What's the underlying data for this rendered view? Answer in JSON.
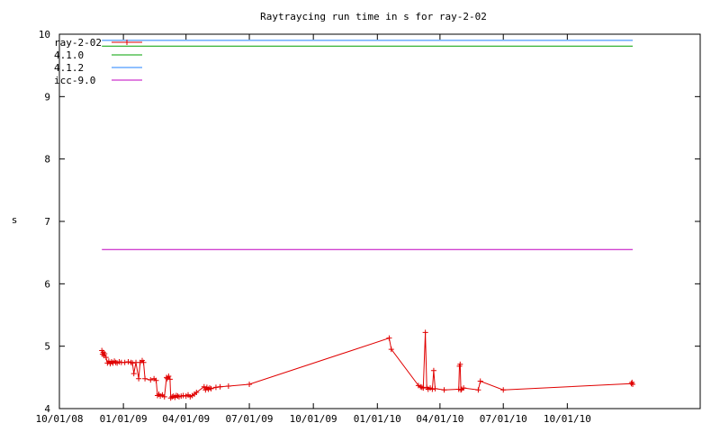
{
  "chart_data": {
    "type": "line",
    "title": "Raytraycing run time in s for ray-2-02",
    "xlabel": "",
    "ylabel": "s",
    "xlim": [
      "2008-10-01",
      "2011-04-10"
    ],
    "ylim": [
      4,
      10
    ],
    "x_ticks": [
      {
        "date": "2008-10-01",
        "label": "10/01/08"
      },
      {
        "date": "2009-01-01",
        "label": "01/01/09"
      },
      {
        "date": "2009-04-01",
        "label": "04/01/09"
      },
      {
        "date": "2009-07-01",
        "label": "07/01/09"
      },
      {
        "date": "2009-10-01",
        "label": "10/01/09"
      },
      {
        "date": "2010-01-01",
        "label": "01/01/10"
      },
      {
        "date": "2010-04-01",
        "label": "04/01/10"
      },
      {
        "date": "2010-07-01",
        "label": "07/01/10"
      },
      {
        "date": "2010-10-01",
        "label": "10/01/10"
      }
    ],
    "y_ticks": [
      4,
      5,
      6,
      7,
      8,
      9,
      10
    ],
    "grid": false,
    "legend": "top-left",
    "series": [
      {
        "name": "ray-2-02",
        "color": "#e00000",
        "marker": "plus",
        "points": [
          [
            "2008-12-01",
            4.93
          ],
          [
            "2008-12-02",
            4.87
          ],
          [
            "2008-12-03",
            4.9
          ],
          [
            "2008-12-04",
            4.85
          ],
          [
            "2008-12-05",
            4.88
          ],
          [
            "2008-12-07",
            4.82
          ],
          [
            "2008-12-09",
            4.73
          ],
          [
            "2008-12-11",
            4.76
          ],
          [
            "2008-12-13",
            4.72
          ],
          [
            "2008-12-15",
            4.75
          ],
          [
            "2008-12-17",
            4.73
          ],
          [
            "2008-12-19",
            4.76
          ],
          [
            "2008-12-21",
            4.74
          ],
          [
            "2008-12-23",
            4.73
          ],
          [
            "2008-12-26",
            4.75
          ],
          [
            "2008-12-29",
            4.74
          ],
          [
            "2009-01-03",
            4.74
          ],
          [
            "2009-01-08",
            4.75
          ],
          [
            "2009-01-12",
            4.74
          ],
          [
            "2009-01-14",
            4.73
          ],
          [
            "2009-01-16",
            4.56
          ],
          [
            "2009-01-19",
            4.74
          ],
          [
            "2009-01-23",
            4.48
          ],
          [
            "2009-01-25",
            4.74
          ],
          [
            "2009-01-28",
            4.77
          ],
          [
            "2009-01-30",
            4.74
          ],
          [
            "2009-02-01",
            4.48
          ],
          [
            "2009-02-09",
            4.46
          ],
          [
            "2009-02-14",
            4.48
          ],
          [
            "2009-02-17",
            4.45
          ],
          [
            "2009-02-19",
            4.21
          ],
          [
            "2009-02-21",
            4.23
          ],
          [
            "2009-02-23",
            4.2
          ],
          [
            "2009-02-26",
            4.22
          ],
          [
            "2009-03-01",
            4.19
          ],
          [
            "2009-03-04",
            4.5
          ],
          [
            "2009-03-05",
            4.48
          ],
          [
            "2009-03-07",
            4.52
          ],
          [
            "2009-03-09",
            4.47
          ],
          [
            "2009-03-10",
            4.17
          ],
          [
            "2009-03-12",
            4.19
          ],
          [
            "2009-03-14",
            4.2
          ],
          [
            "2009-03-16",
            4.18
          ],
          [
            "2009-03-18",
            4.21
          ],
          [
            "2009-03-20",
            4.2
          ],
          [
            "2009-03-22",
            4.19
          ],
          [
            "2009-03-25",
            4.2
          ],
          [
            "2009-03-28",
            4.21
          ],
          [
            "2009-04-01",
            4.2
          ],
          [
            "2009-04-04",
            4.22
          ],
          [
            "2009-04-07",
            4.19
          ],
          [
            "2009-04-10",
            4.21
          ],
          [
            "2009-04-13",
            4.23
          ],
          [
            "2009-04-16",
            4.26
          ],
          [
            "2009-04-27",
            4.35
          ],
          [
            "2009-04-29",
            4.3
          ],
          [
            "2009-05-01",
            4.34
          ],
          [
            "2009-05-03",
            4.31
          ],
          [
            "2009-05-05",
            4.33
          ],
          [
            "2009-05-07",
            4.32
          ],
          [
            "2009-05-14",
            4.34
          ],
          [
            "2009-05-20",
            4.35
          ],
          [
            "2009-06-01",
            4.36
          ],
          [
            "2009-07-01",
            4.39
          ],
          [
            "2010-01-18",
            5.13
          ],
          [
            "2010-01-21",
            4.95
          ],
          [
            "2010-03-01",
            4.37
          ],
          [
            "2010-03-04",
            4.35
          ],
          [
            "2010-03-06",
            4.34
          ],
          [
            "2010-03-08",
            4.33
          ],
          [
            "2010-03-11",
            5.22
          ],
          [
            "2010-03-13",
            4.34
          ],
          [
            "2010-03-15",
            4.31
          ],
          [
            "2010-03-18",
            4.33
          ],
          [
            "2010-03-21",
            4.31
          ],
          [
            "2010-03-23",
            4.61
          ],
          [
            "2010-03-25",
            4.32
          ],
          [
            "2010-04-07",
            4.3
          ],
          [
            "2010-04-28",
            4.31
          ],
          [
            "2010-04-29",
            4.68
          ],
          [
            "2010-04-30",
            4.71
          ],
          [
            "2010-05-01",
            4.3
          ],
          [
            "2010-05-02",
            4.31
          ],
          [
            "2010-05-05",
            4.33
          ],
          [
            "2010-05-26",
            4.3
          ],
          [
            "2010-05-29",
            4.44
          ],
          [
            "2010-07-01",
            4.3
          ],
          [
            "2011-01-01",
            4.4
          ],
          [
            "2011-01-02",
            4.42
          ],
          [
            "2011-01-03",
            4.39
          ]
        ]
      },
      {
        "name": "4.1.0",
        "color": "#00a000",
        "points": [
          [
            "2008-12-01",
            9.81
          ],
          [
            "2011-01-03",
            9.81
          ]
        ]
      },
      {
        "name": "4.1.2",
        "color": "#2080ff",
        "points": [
          [
            "2008-12-01",
            9.9
          ],
          [
            "2011-01-03",
            9.9
          ]
        ]
      },
      {
        "name": "icc-9.0",
        "color": "#c000c0",
        "points": [
          [
            "2008-12-01",
            6.55
          ],
          [
            "2011-01-03",
            6.55
          ]
        ]
      }
    ]
  }
}
